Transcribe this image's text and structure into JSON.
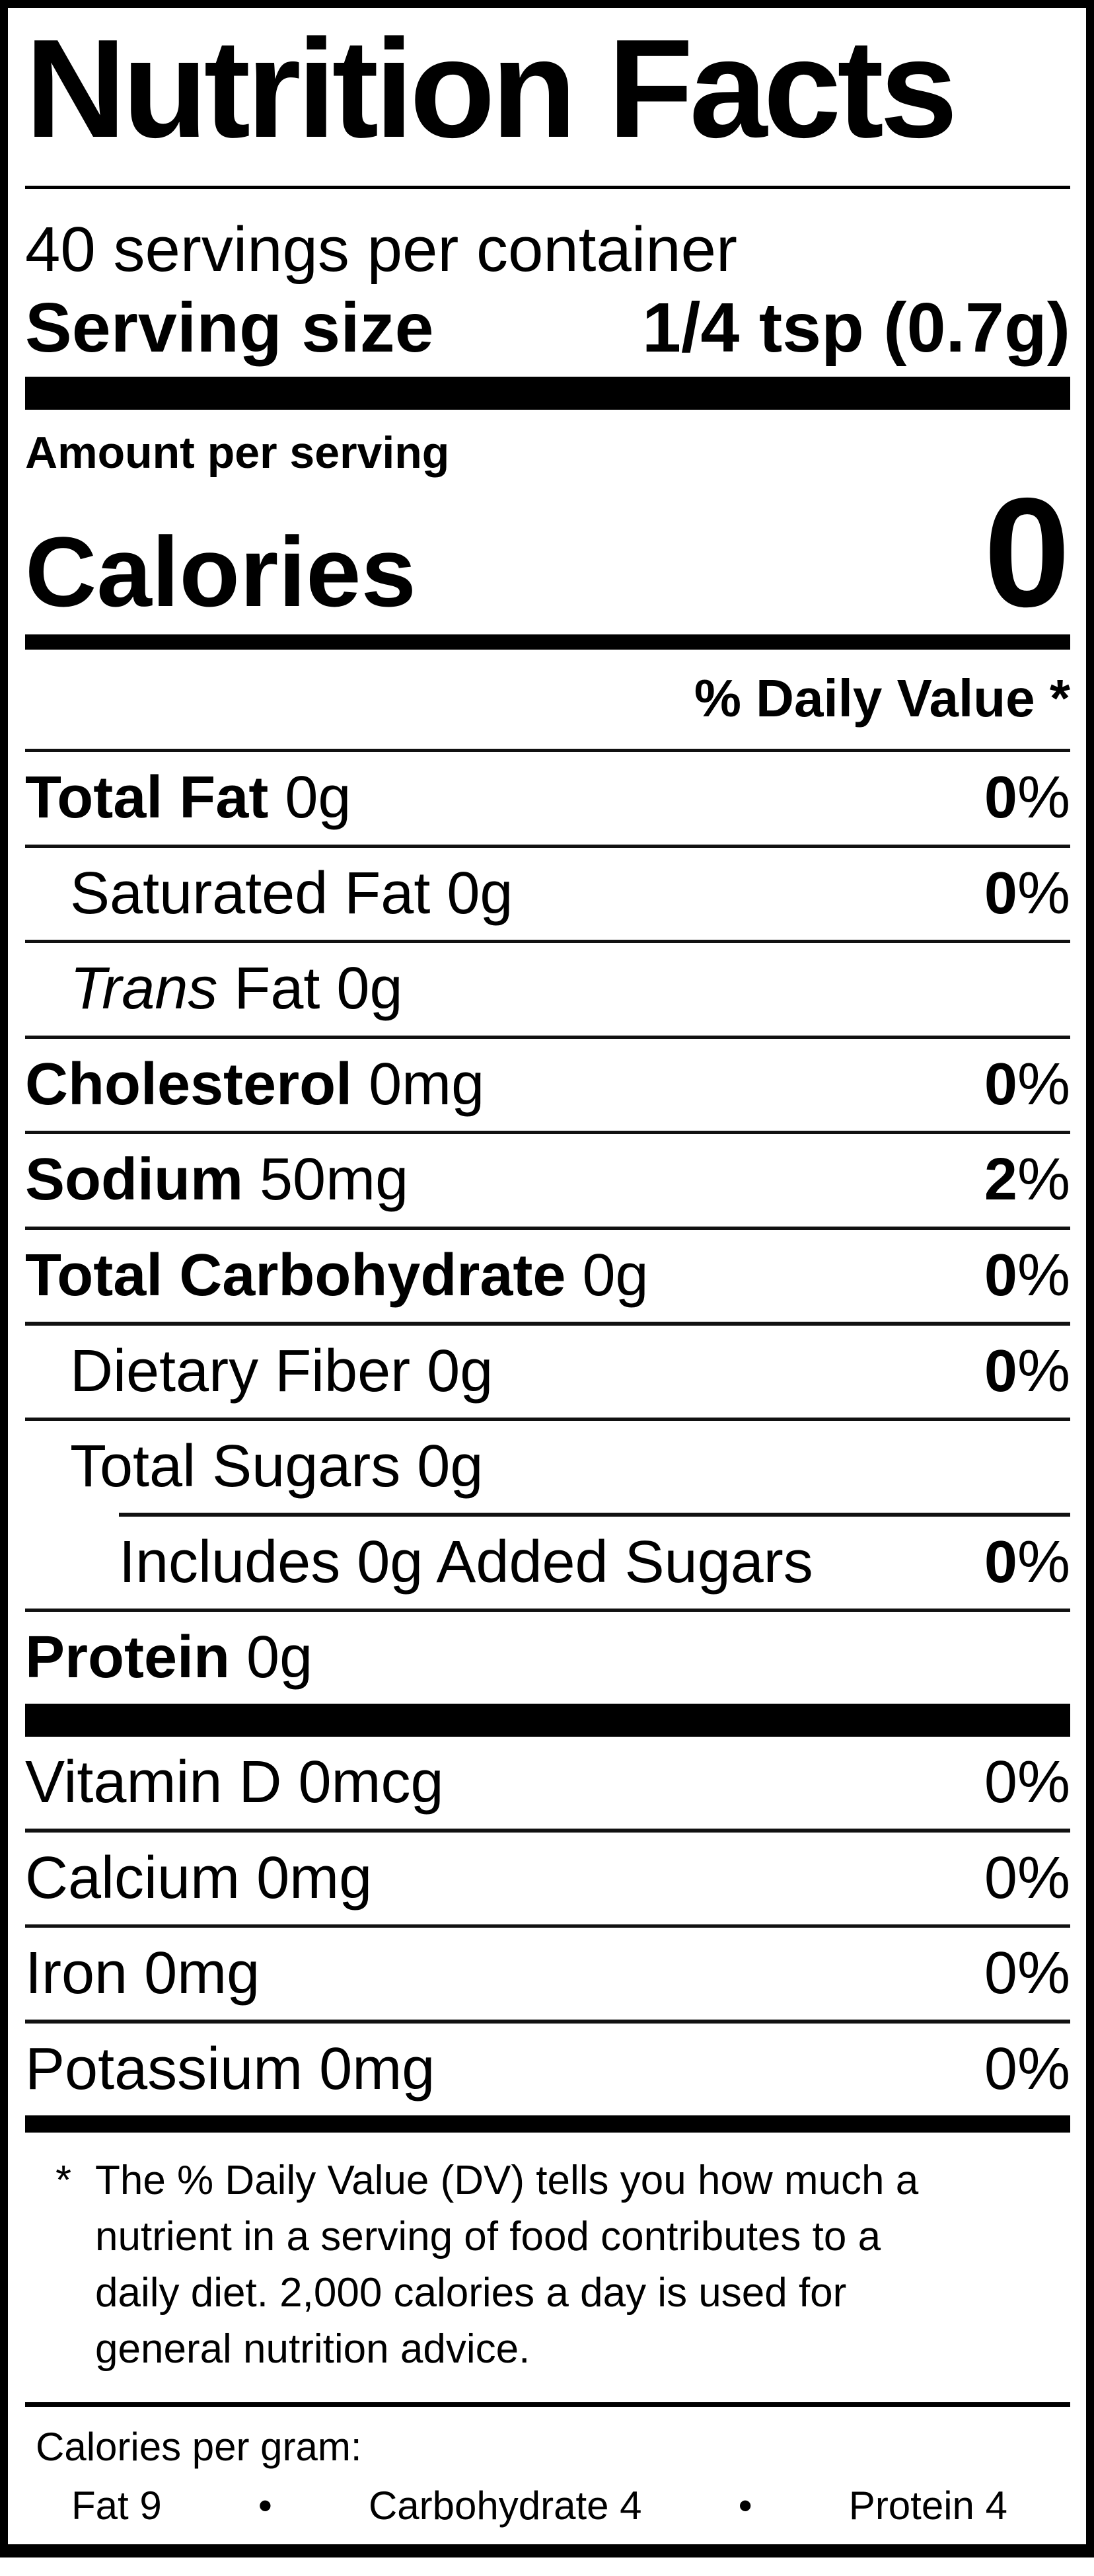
{
  "colors": {
    "ink": "#000000",
    "paper": "#ffffff"
  },
  "label": {
    "title": "Nutrition Facts",
    "servings_per_container": "40 servings per container",
    "serving_size_label": "Serving size",
    "serving_size_value": "1/4 tsp (0.7g)",
    "amount_per_serving": "Amount per serving",
    "calories_label": "Calories",
    "calories_value": "0",
    "daily_value_header": "% Daily Value *",
    "rows": [
      {
        "name": "Total Fat",
        "amount": " 0g",
        "dv": "0",
        "dv_sign": "%"
      },
      {
        "name": "Saturated Fat",
        "amount": " 0g",
        "dv": "0",
        "dv_sign": "%"
      },
      {
        "name": "Trans",
        "amount": " Fat 0g",
        "dv": "",
        "dv_sign": ""
      },
      {
        "name": "Cholesterol",
        "amount": " 0mg",
        "dv": "0",
        "dv_sign": "%"
      },
      {
        "name": "Sodium",
        "amount": " 50mg",
        "dv": "2",
        "dv_sign": "%"
      },
      {
        "name": "Total Carbohydrate",
        "amount": " 0g",
        "dv": "0",
        "dv_sign": "%"
      },
      {
        "name": "Dietary Fiber",
        "amount": " 0g",
        "dv": "0",
        "dv_sign": "%"
      },
      {
        "name": "Total Sugars",
        "amount": " 0g",
        "dv": "",
        "dv_sign": ""
      },
      {
        "name": "Includes 0g Added Sugars",
        "amount": "",
        "dv": "0",
        "dv_sign": "%"
      },
      {
        "name": "Protein",
        "amount": " 0g",
        "dv": "",
        "dv_sign": ""
      },
      {
        "name": "Vitamin D",
        "amount": " 0mcg",
        "dv": "0",
        "dv_sign": "%"
      },
      {
        "name": "Calcium",
        "amount": " 0mg",
        "dv": "0",
        "dv_sign": "%"
      },
      {
        "name": "Iron",
        "amount": " 0mg",
        "dv": "0",
        "dv_sign": "%"
      },
      {
        "name": "Potassium",
        "amount": " 0mg",
        "dv": "0",
        "dv_sign": "%"
      }
    ],
    "footnote_marker": "*",
    "footnote_lines": [
      "The % Daily Value (DV) tells you how much a",
      "nutrient in a serving of food contributes to a",
      "daily diet. 2,000 calories a day is used for",
      "general nutrition advice."
    ],
    "calories_per_gram": {
      "header": "Calories per gram:",
      "items": [
        "Fat 9",
        "Carbohydrate 4",
        "Protein 4"
      ],
      "separator": "•"
    }
  }
}
